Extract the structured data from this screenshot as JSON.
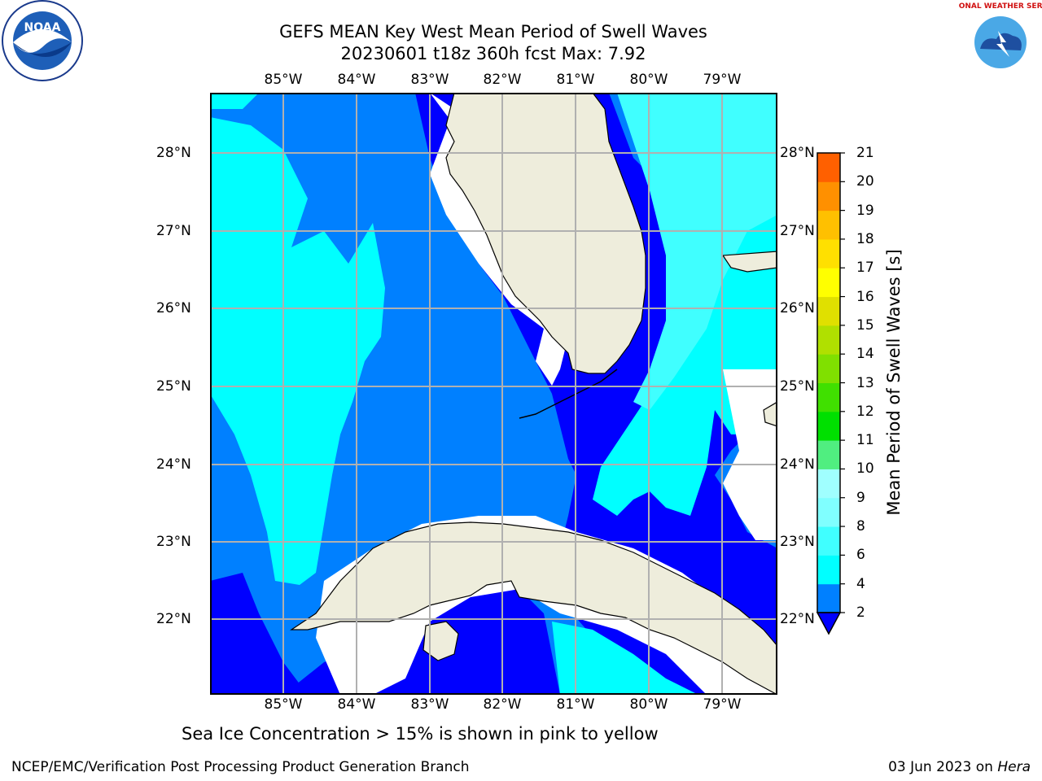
{
  "header": {
    "title_line1": "GEFS MEAN Key West Mean Period of Swell Waves",
    "title_line2": "20230601 t18z 360h fcst   Max: 7.92"
  },
  "map": {
    "lon_labels": [
      "85°W",
      "84°W",
      "83°W",
      "82°W",
      "81°W",
      "80°W",
      "79°W"
    ],
    "lat_labels": [
      "28°N",
      "27°N",
      "26°N",
      "25°N",
      "24°N",
      "23°N",
      "22°N"
    ],
    "colors": {
      "land": "#eeeddc",
      "ocean_deep": "#0000ff",
      "band_2_4": "#0080ff",
      "band_4_6": "#00ffff",
      "band_6_8": "#40ffff",
      "grid": "#b0b0b0"
    }
  },
  "colorbar": {
    "label": "Mean Period of Swell Waves [s]",
    "ticks": [
      "2",
      "4",
      "6",
      "8",
      "9",
      "10",
      "11",
      "12",
      "13",
      "14",
      "15",
      "16",
      "17",
      "18",
      "19",
      "20",
      "21"
    ],
    "colors": [
      "#0080ff",
      "#00ffff",
      "#40ffff",
      "#80ffff",
      "#a0ffff",
      "#50ee80",
      "#00e000",
      "#40e000",
      "#80e000",
      "#b0e000",
      "#e0e000",
      "#ffff00",
      "#ffe000",
      "#ffc000",
      "#ff9000",
      "#ff6000",
      "#ff3000",
      "#ff0000"
    ],
    "under_color": "#0000ff"
  },
  "note": "Sea Ice Concentration > 15% is shown in pink to yellow",
  "footer": {
    "left": "NCEP/EMC/Verification Post Processing Product Generation Branch",
    "date": "03 Jun 2023 on ",
    "host": "Hera"
  },
  "logos": {
    "noaa_text": "NOAA",
    "nws_text": "NATIONAL WEATHER SERVICE"
  }
}
